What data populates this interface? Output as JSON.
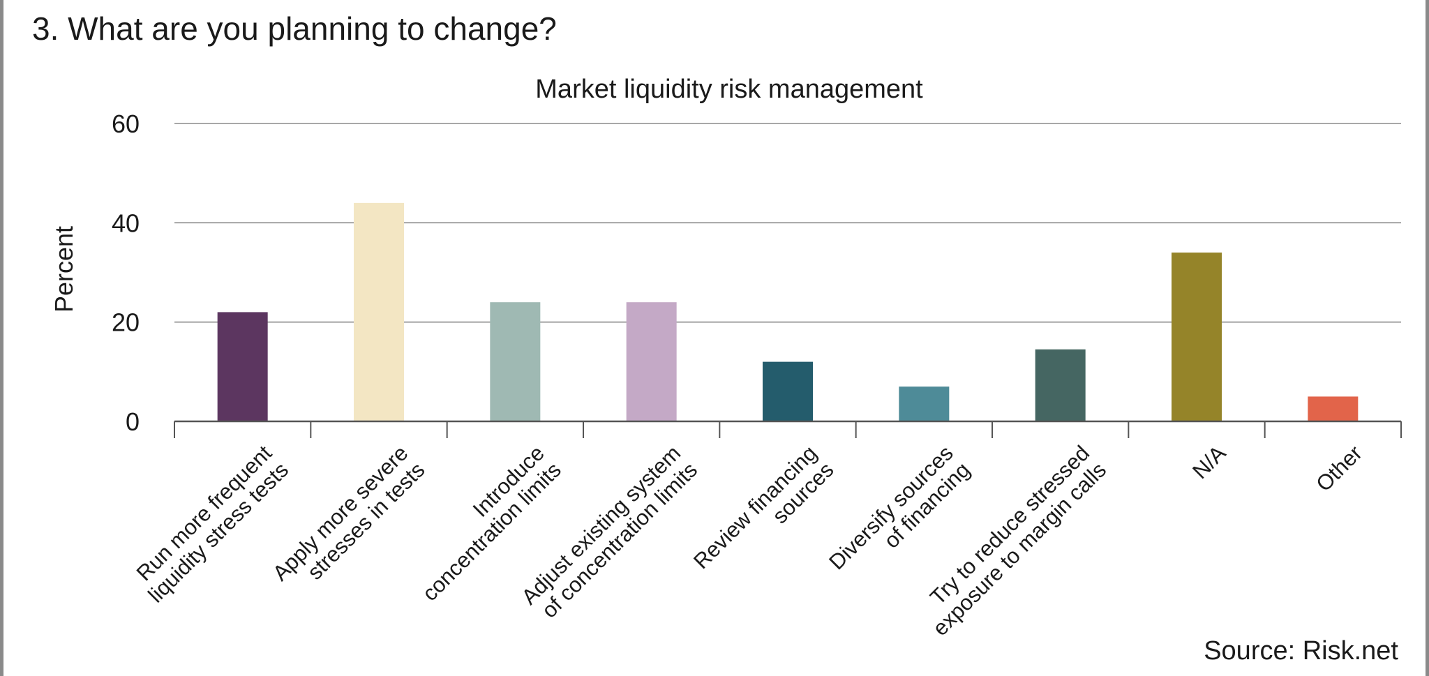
{
  "heading": "3. What are you planning to change?",
  "source": "Source: Risk.net",
  "chart_data": {
    "type": "bar",
    "title": "Market liquidity risk management",
    "ylabel": "Percent",
    "xlabel": "",
    "ylim": [
      0,
      60
    ],
    "yticks": [
      0,
      20,
      40,
      60
    ],
    "grid": true,
    "categories": [
      [
        "Run more frequent",
        "liquidity stress tests"
      ],
      [
        "Apply more severe",
        "stresses in tests"
      ],
      [
        "Introduce",
        "concentration limits"
      ],
      [
        "Adjust existing system",
        "of concentration limits"
      ],
      [
        "Review financing",
        "sources"
      ],
      [
        "Diversify sources",
        "of financing"
      ],
      [
        "Try to reduce stressed",
        "exposure to margin calls"
      ],
      [
        "N/A"
      ],
      [
        "Other"
      ]
    ],
    "values": [
      22,
      44,
      24,
      24,
      12,
      7,
      14.5,
      34,
      5
    ],
    "colors": [
      "#5c3660",
      "#f3e6c3",
      "#9fb9b3",
      "#c4a9c6",
      "#245c6c",
      "#4e8b98",
      "#456662",
      "#958429",
      "#e2644a"
    ]
  }
}
